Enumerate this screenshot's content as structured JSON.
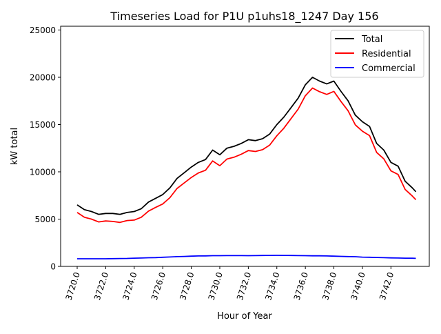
{
  "chart_data": {
    "type": "line",
    "title": "Timeseries Load for P1U p1uhs18_1247  Day 156",
    "xlabel": "Hour of Year",
    "ylabel": "kW total",
    "xlim": [
      3718.84,
      3744.69
    ],
    "ylim": [
      0,
      25400
    ],
    "xticks": [
      3720,
      3722,
      3724,
      3726,
      3728,
      3730,
      3732,
      3734,
      3736,
      3738,
      3740,
      3742
    ],
    "xtick_labels": [
      "3720.0",
      "3722.0",
      "3724.0",
      "3726.0",
      "3728.0",
      "3730.0",
      "3732.0",
      "3734.0",
      "3736.0",
      "3738.0",
      "3740.0",
      "3742.0"
    ],
    "yticks": [
      0,
      5000,
      10000,
      15000,
      20000,
      25000
    ],
    "ytick_labels": [
      "0",
      "5000",
      "10000",
      "15000",
      "20000",
      "25000"
    ],
    "grid": false,
    "legend_position": "top-right",
    "x": [
      3720,
      3720.5,
      3721,
      3721.5,
      3722,
      3722.5,
      3723,
      3723.5,
      3724,
      3724.5,
      3725,
      3725.5,
      3726,
      3726.5,
      3727,
      3727.5,
      3728,
      3728.5,
      3729,
      3729.5,
      3730,
      3730.5,
      3731,
      3731.5,
      3732,
      3732.5,
      3733,
      3733.5,
      3734,
      3734.5,
      3735,
      3735.5,
      3736,
      3736.5,
      3737,
      3737.5,
      3738,
      3738.5,
      3739,
      3739.5,
      3740,
      3740.5,
      3741,
      3741.5,
      3742,
      3742.5,
      3743,
      3743.5,
      3743.75
    ],
    "series": [
      {
        "name": "Total",
        "color": "#000000",
        "values": [
          6500,
          6000,
          5800,
          5500,
          5600,
          5600,
          5500,
          5700,
          5800,
          6100,
          6800,
          7200,
          7600,
          8300,
          9300,
          9900,
          10500,
          11000,
          11300,
          12300,
          11800,
          12500,
          12700,
          13000,
          13400,
          13300,
          13500,
          14000,
          15000,
          15800,
          16800,
          17800,
          19200,
          20000,
          19600,
          19300,
          19600,
          18500,
          17500,
          16000,
          15300,
          14800,
          13000,
          12300,
          11000,
          10600,
          9000,
          8300,
          7900
        ]
      },
      {
        "name": "Residential",
        "color": "#ff0000",
        "values": [
          5700,
          5200,
          5000,
          4700,
          4800,
          4750,
          4650,
          4850,
          4900,
          5200,
          5850,
          6230,
          6600,
          7260,
          8240,
          8820,
          9400,
          9880,
          10170,
          11150,
          10650,
          11350,
          11550,
          11850,
          12250,
          12150,
          12340,
          12830,
          13820,
          14630,
          15640,
          16640,
          18050,
          18860,
          18470,
          18190,
          18510,
          17430,
          16450,
          14970,
          14300,
          13830,
          12050,
          11370,
          10100,
          9720,
          8130,
          7440,
          7050
        ]
      },
      {
        "name": "Commercial",
        "color": "#0000ff",
        "values": [
          800,
          800,
          800,
          800,
          800,
          820,
          830,
          840,
          870,
          880,
          910,
          930,
          960,
          990,
          1030,
          1050,
          1080,
          1100,
          1110,
          1130,
          1130,
          1140,
          1140,
          1140,
          1130,
          1140,
          1150,
          1160,
          1170,
          1160,
          1150,
          1140,
          1130,
          1120,
          1120,
          1100,
          1080,
          1060,
          1040,
          1020,
          980,
          960,
          940,
          920,
          900,
          880,
          870,
          860,
          850
        ]
      }
    ]
  }
}
